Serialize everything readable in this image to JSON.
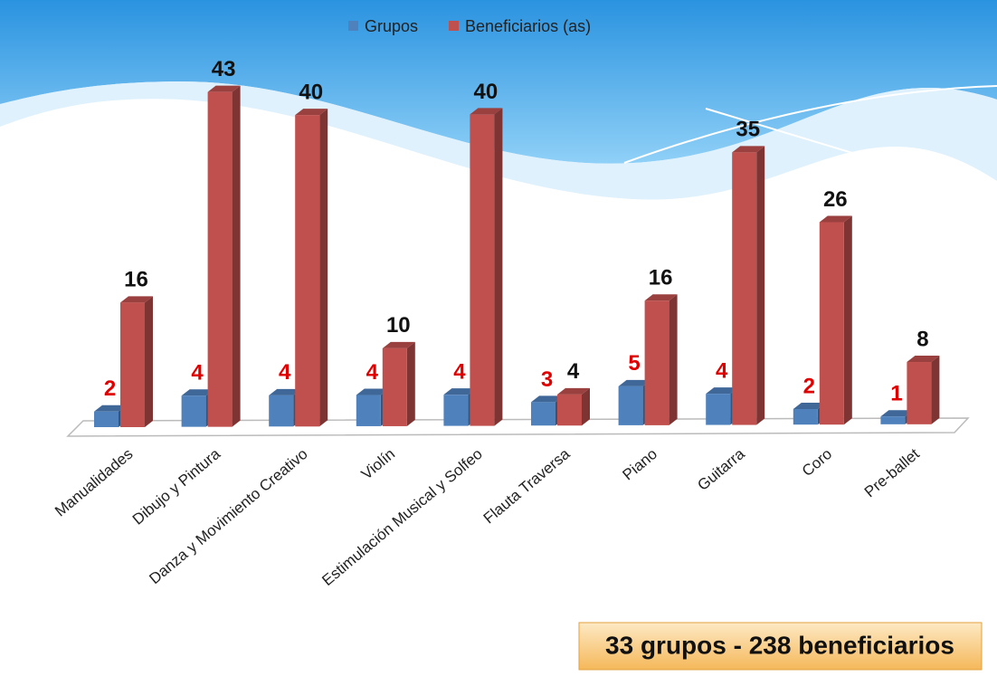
{
  "chart_data": {
    "type": "bar",
    "categories": [
      "Manualidades",
      "Dibujo y Pintura",
      "Danza y Movimiento Creativo",
      "Violín",
      "Estimulación Musical y Solfeo",
      "Flauta Traversa",
      "Piano",
      "Guitarra",
      "Coro",
      "Pre-ballet"
    ],
    "series": [
      {
        "name": "Grupos",
        "color": "#4f81bd",
        "label_color": "#e00000",
        "values": [
          2,
          4,
          4,
          4,
          4,
          3,
          5,
          4,
          2,
          1
        ]
      },
      {
        "name": "Beneficiarios (as)",
        "color": "#c0504d",
        "label_color": "#111111",
        "values": [
          16,
          43,
          40,
          10,
          40,
          4,
          16,
          35,
          26,
          8
        ]
      }
    ],
    "annotation": "33 grupos  -  238 beneficiarios"
  }
}
